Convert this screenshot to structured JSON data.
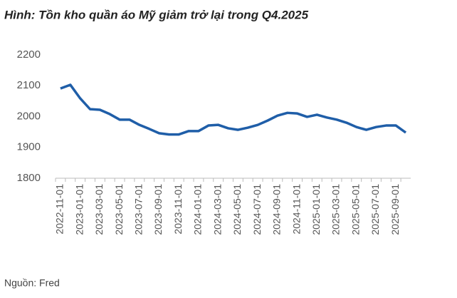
{
  "chart_data": {
    "type": "line",
    "title": "Hình: Tồn kho quần áo Mỹ giảm trở lại trong Q4.2025",
    "source": "Nguồn: Fred",
    "categories": [
      "2022-11-01",
      null,
      "2023-01-01",
      null,
      "2023-03-01",
      null,
      "2023-05-01",
      null,
      "2023-07-01",
      null,
      "2023-09-01",
      null,
      "2023-11-01",
      null,
      "2024-01-01",
      null,
      "2024-03-01",
      null,
      "2024-05-01",
      null,
      "2024-07-01",
      null,
      "2024-09-01",
      null,
      "2024-11-01",
      null,
      "2025-01-01",
      null,
      "2025-03-01",
      null,
      "2025-05-01",
      null,
      "2025-07-01",
      null,
      "2025-09-01",
      null
    ],
    "values": [
      2091,
      2103,
      2059,
      2024,
      2022,
      2008,
      1990,
      1990,
      1973,
      1960,
      1946,
      1942,
      1942,
      1953,
      1953,
      1971,
      1973,
      1962,
      1957,
      1964,
      1973,
      1987,
      2003,
      2012,
      2010,
      1999,
      2006,
      1997,
      1990,
      1980,
      1966,
      1957,
      1966,
      1971,
      1971,
      1948
    ],
    "color": "#1f5ea8",
    "ylim": [
      1800,
      2200
    ],
    "yticks": [
      1800,
      1900,
      2000,
      2100,
      2200
    ],
    "grid": false
  }
}
